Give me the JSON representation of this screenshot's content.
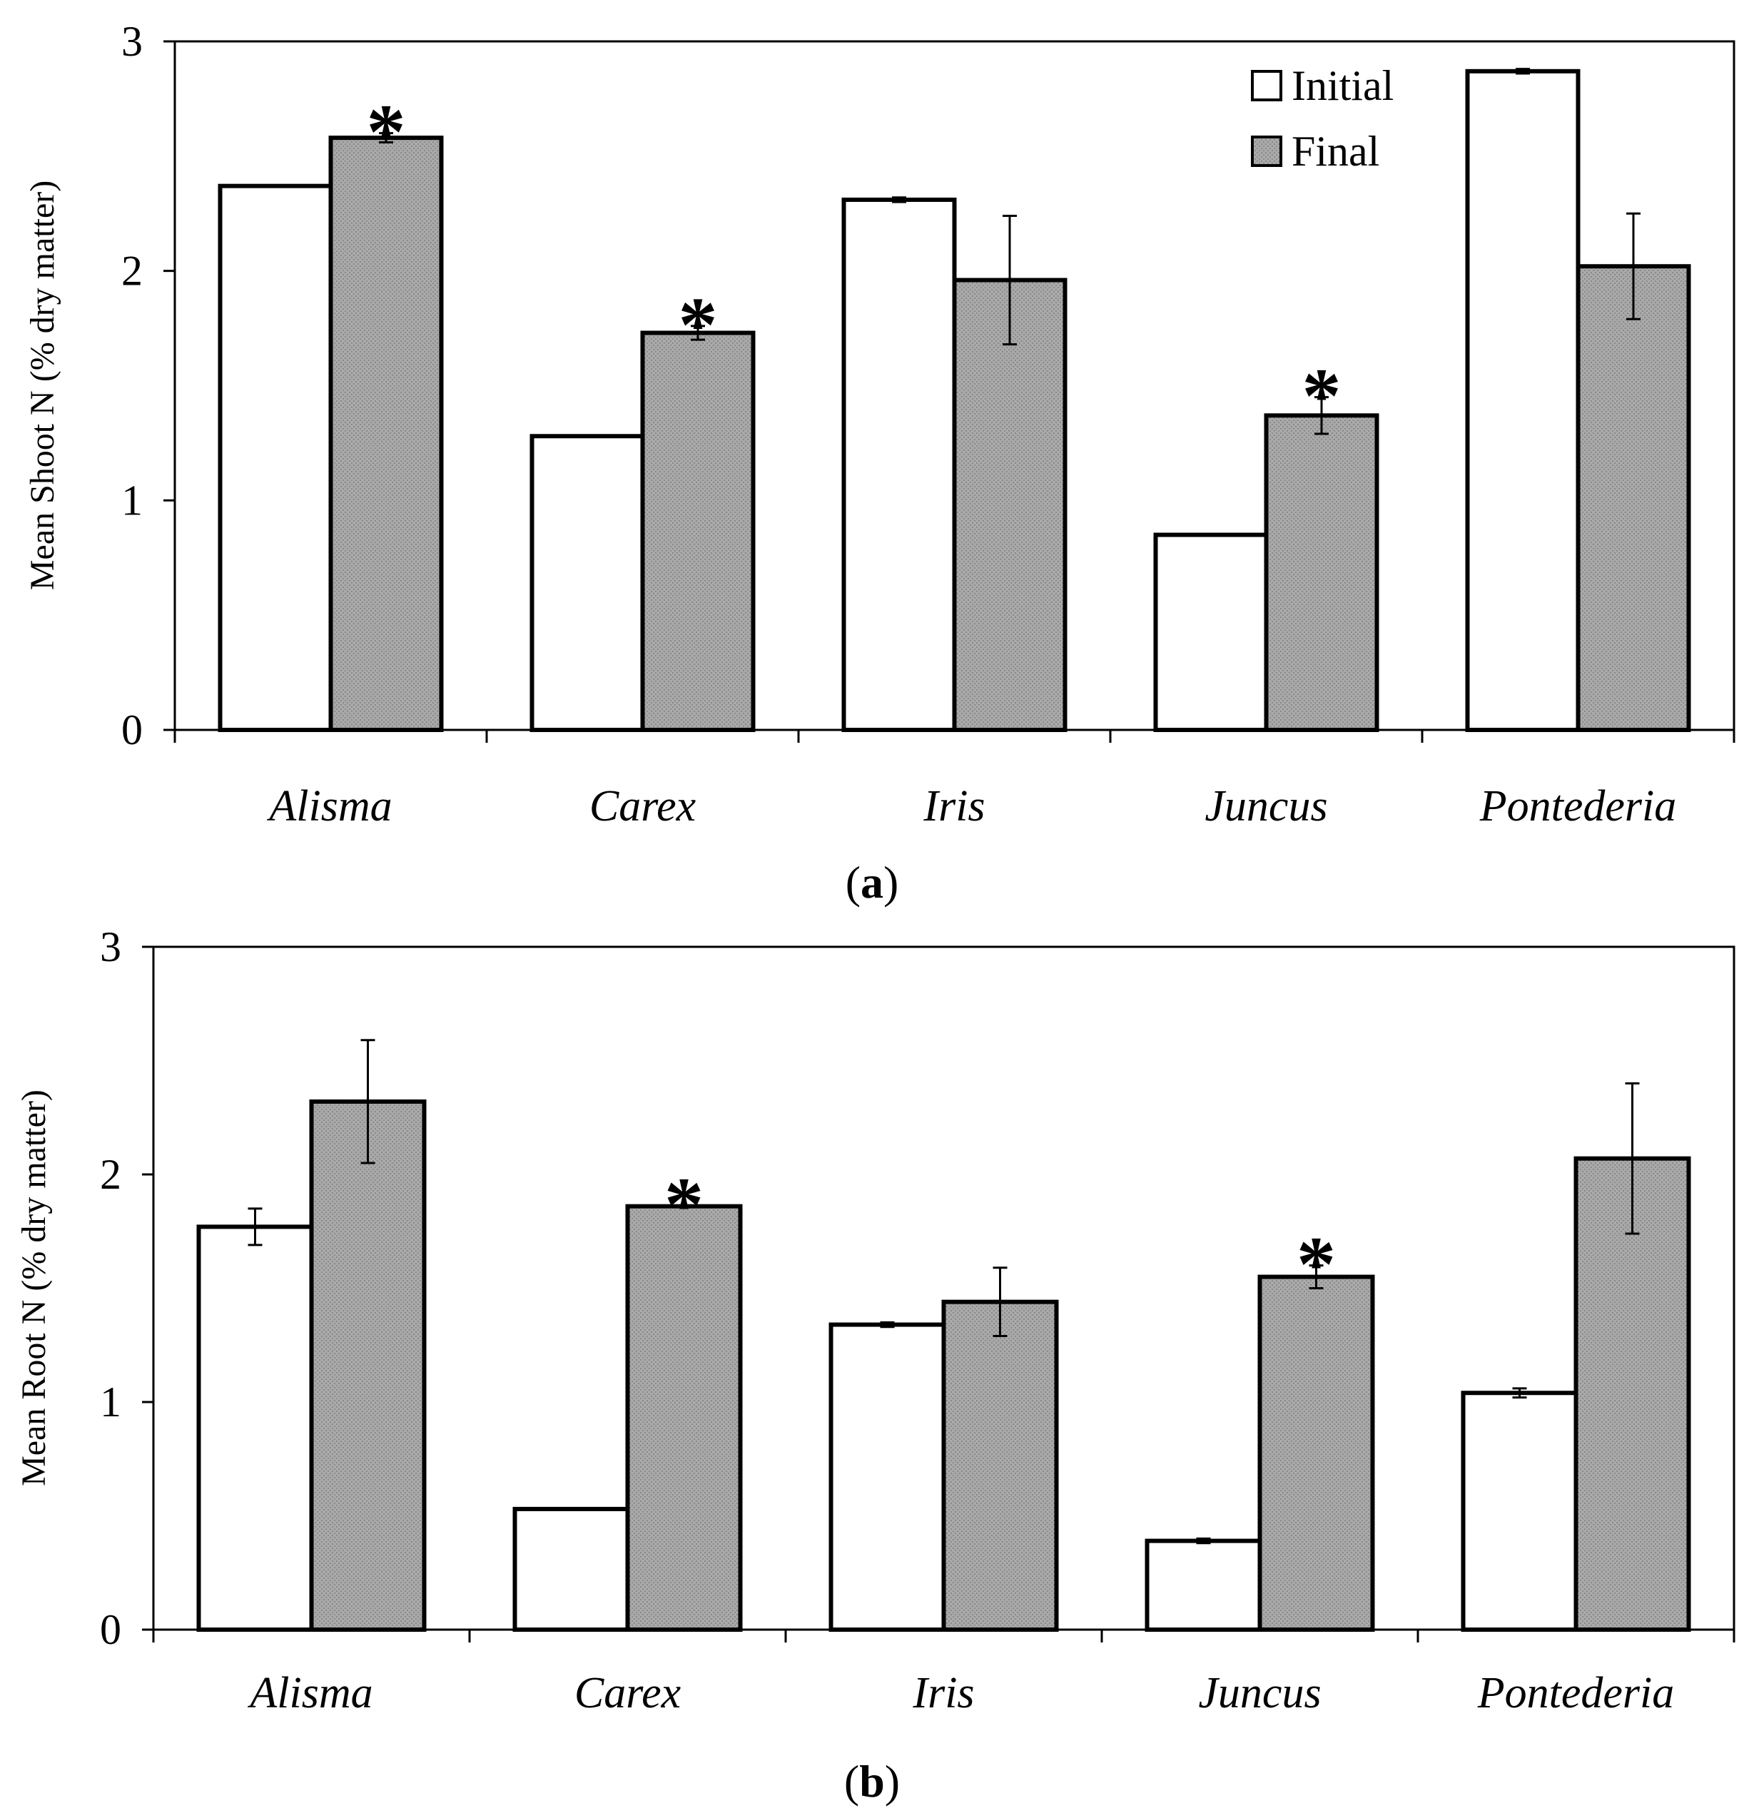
{
  "legend": {
    "initial": "Initial",
    "final": "Final"
  },
  "colors": {
    "initial_fill": "#ffffff",
    "final_fill": "#a9a9a9",
    "stroke": "#000000"
  },
  "significance_marker": "*",
  "chart_data": [
    {
      "type": "bar",
      "panel_label": "a",
      "ylabel": "Mean Shoot N (% dry matter)",
      "xlabel": "",
      "ylim": [
        0,
        3
      ],
      "yticks": [
        "0",
        "1",
        "2",
        "3"
      ],
      "categories": [
        "Alisma",
        "Carex",
        "Iris",
        "Juncus",
        "Pontederia"
      ],
      "series": [
        {
          "name": "Initial",
          "values": [
            2.37,
            1.28,
            2.31,
            0.85,
            2.87
          ],
          "errors": [
            0,
            0,
            0.01,
            0,
            0.01
          ]
        },
        {
          "name": "Final",
          "values": [
            2.58,
            1.73,
            1.96,
            1.37,
            2.02
          ],
          "errors": [
            0.02,
            0.03,
            0.28,
            0.08,
            0.23
          ]
        }
      ],
      "significant": [
        true,
        true,
        false,
        true,
        false
      ],
      "legend_position": "top-right"
    },
    {
      "type": "bar",
      "panel_label": "b",
      "ylabel": "Mean Root N (% dry matter)",
      "xlabel": "",
      "ylim": [
        0,
        3
      ],
      "yticks": [
        "0",
        "1",
        "2",
        "3"
      ],
      "categories": [
        "Alisma",
        "Carex",
        "Iris",
        "Juncus",
        "Pontederia"
      ],
      "series": [
        {
          "name": "Initial",
          "values": [
            1.77,
            0.53,
            1.34,
            0.39,
            1.04
          ],
          "errors": [
            0.08,
            0,
            0.01,
            0.01,
            0.02
          ]
        },
        {
          "name": "Final",
          "values": [
            2.32,
            1.86,
            1.44,
            1.55,
            2.07
          ],
          "errors": [
            0.27,
            0,
            0.15,
            0.05,
            0.33
          ]
        }
      ],
      "significant": [
        false,
        true,
        false,
        true,
        false
      ]
    }
  ]
}
